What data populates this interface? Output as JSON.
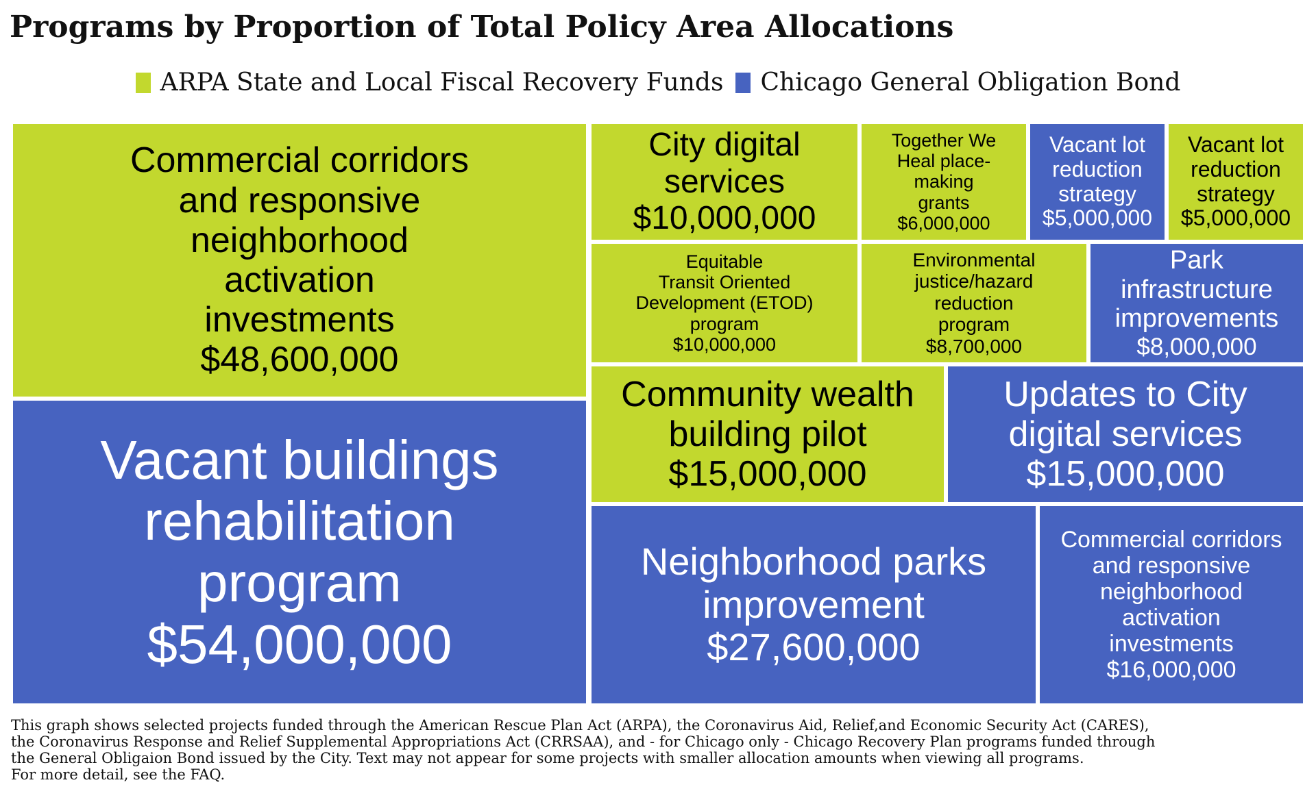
{
  "title": "Programs by Proportion of Total Policy Area Allocations",
  "colors": {
    "arpa": "#C2D82E",
    "bond": "#4763C0",
    "arpa_text": "#000000",
    "bond_text": "#ffffff"
  },
  "legend": [
    {
      "label": "ARPA State and Local Fiscal Recovery Funds",
      "color": "#C2D82E"
    },
    {
      "label": "Chicago General Obligation Bond",
      "color": "#4763C0"
    }
  ],
  "chart_data": {
    "type": "treemap",
    "title": "Programs by Proportion of Total Policy Area Allocations",
    "items": [
      {
        "label": "Vacant buildings rehabilitation program",
        "amount": "$54,000,000",
        "value": 54000000,
        "fund": "Chicago General Obligation Bond"
      },
      {
        "label": "Commercial corridors and responsive neighborhood activation investments",
        "amount": "$48,600,000",
        "value": 48600000,
        "fund": "ARPA State and Local Fiscal Recovery Funds"
      },
      {
        "label": "Neighborhood parks improvement",
        "amount": "$27,600,000",
        "value": 27600000,
        "fund": "Chicago General Obligation Bond"
      },
      {
        "label": "Commercial corridors and responsive neighborhood activation investments",
        "amount": "$16,000,000",
        "value": 16000000,
        "fund": "Chicago General Obligation Bond"
      },
      {
        "label": "Community wealth building pilot",
        "amount": "$15,000,000",
        "value": 15000000,
        "fund": "ARPA State and Local Fiscal Recovery Funds"
      },
      {
        "label": "Updates to City digital services",
        "amount": "$15,000,000",
        "value": 15000000,
        "fund": "Chicago General Obligation Bond"
      },
      {
        "label": "City digital services",
        "amount": "$10,000,000",
        "value": 10000000,
        "fund": "ARPA State and Local Fiscal Recovery Funds"
      },
      {
        "label": "Equitable Transit Oriented Development (ETOD) program",
        "amount": "$10,000,000",
        "value": 10000000,
        "fund": "ARPA State and Local Fiscal Recovery Funds"
      },
      {
        "label": "Environmental justice/hazard reduction program",
        "amount": "$8,700,000",
        "value": 8700000,
        "fund": "ARPA State and Local Fiscal Recovery Funds"
      },
      {
        "label": "Park infrastructure improvements",
        "amount": "$8,000,000",
        "value": 8000000,
        "fund": "Chicago General Obligation Bond"
      },
      {
        "label": "Together We Heal place-making grants",
        "amount": "$6,000,000",
        "value": 6000000,
        "fund": "ARPA State and Local Fiscal Recovery Funds"
      },
      {
        "label": "Vacant lot reduction strategy",
        "amount": "$5,000,000",
        "value": 5000000,
        "fund": "Chicago General Obligation Bond"
      },
      {
        "label": "Vacant lot reduction strategy",
        "amount": "$5,000,000",
        "value": 5000000,
        "fund": "ARPA State and Local Fiscal Recovery Funds"
      }
    ]
  },
  "footnote": [
    "This graph shows selected projects funded through the American Rescue Plan Act (ARPA), the Coronavirus Aid, Relief,and Economic Security Act (CARES),",
    "the Coronavirus Response and Relief Supplemental Appropriations Act (CRRSAA), and - for Chicago only - Chicago Recovery Plan programs funded through",
    "the General Obligaion Bond issued by the City. Text may not appear for some projects with smaller allocation amounts when viewing all programs.",
    "For more detail, see the FAQ."
  ]
}
